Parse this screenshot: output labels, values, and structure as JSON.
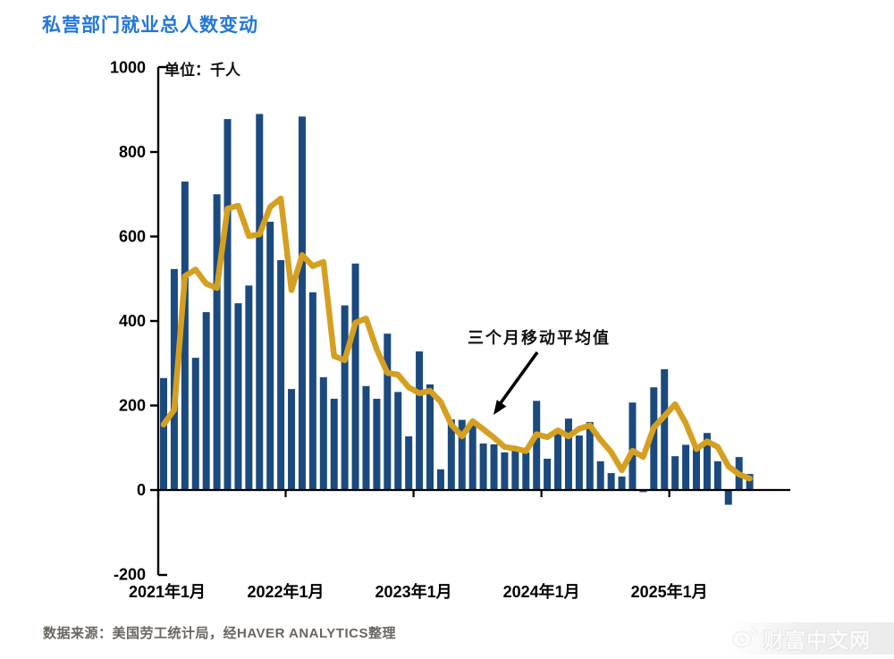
{
  "title": "私营部门就业总人数变动",
  "unit_label": "单位：千人",
  "annotation": {
    "label": "三个月移动平均值"
  },
  "footer": {
    "source": "数据来源：美国劳工统计局，经HAVER ANALYTICS整理"
  },
  "watermark": {
    "label": "财富中文网",
    "icon": "weibo-eye-icon"
  },
  "colors": {
    "bar": "#1b4a7e",
    "ma_line": "#d5a021",
    "title": "#2478d8",
    "axis": "#000000",
    "footer": "#6b6560"
  },
  "chart_data": {
    "type": "bar",
    "title": "私营部门就业总人数变动",
    "unit": "千人",
    "grid": false,
    "ylim": [
      -200,
      1000
    ],
    "y_ticks": [
      1000,
      800,
      600,
      400,
      200,
      0,
      -200
    ],
    "x_tick_labels": [
      "2021年1月",
      "2022年1月",
      "2023年1月",
      "2024年1月",
      "2025年1月"
    ],
    "x_tick_month_index": [
      0,
      12,
      24,
      36,
      48
    ],
    "categories": [
      "2021-01",
      "2021-02",
      "2021-03",
      "2021-04",
      "2021-05",
      "2021-06",
      "2021-07",
      "2021-08",
      "2021-09",
      "2021-10",
      "2021-11",
      "2021-12",
      "2022-01",
      "2022-02",
      "2022-03",
      "2022-04",
      "2022-05",
      "2022-06",
      "2022-07",
      "2022-08",
      "2022-09",
      "2022-10",
      "2022-11",
      "2022-12",
      "2023-01",
      "2023-02",
      "2023-03",
      "2023-04",
      "2023-05",
      "2023-06",
      "2023-07",
      "2023-08",
      "2023-09",
      "2023-10",
      "2023-11",
      "2023-12",
      "2024-01",
      "2024-02",
      "2024-03",
      "2024-04",
      "2024-05",
      "2024-06",
      "2024-07",
      "2024-08",
      "2024-09",
      "2024-10",
      "2024-11",
      "2024-12",
      "2025-01",
      "2025-02",
      "2025-03",
      "2025-04",
      "2025-05",
      "2025-06",
      "2025-07",
      "2025-08"
    ],
    "series": [
      {
        "name": "私营部门就业月度变动",
        "render": "bar",
        "values": [
          265,
          523,
          730,
          313,
          421,
          700,
          878,
          442,
          484,
          890,
          635,
          544,
          239,
          884,
          468,
          267,
          216,
          437,
          536,
          246,
          216,
          370,
          232,
          127,
          328,
          250,
          49,
          167,
          166,
          155,
          110,
          108,
          89,
          97,
          89,
          211,
          74,
          137,
          169,
          129,
          161,
          68,
          40,
          32,
          207,
          -5,
          243,
          286,
          80,
          107,
          104,
          135,
          68,
          -35,
          78,
          38
        ]
      },
      {
        "name": "三个月移动平均值",
        "render": "line",
        "values": [
          155,
          190,
          506,
          522,
          488,
          478,
          666,
          673,
          601,
          605,
          670,
          690,
          473,
          556,
          530,
          540,
          317,
          307,
          396,
          406,
          333,
          277,
          273,
          243,
          229,
          235,
          209,
          155,
          127,
          163,
          144,
          124,
          102,
          98,
          92,
          132,
          125,
          141,
          127,
          145,
          153,
          119,
          90,
          47,
          93,
          78,
          148,
          175,
          203,
          158,
          97,
          115,
          102,
          56,
          37,
          27
        ]
      }
    ]
  }
}
